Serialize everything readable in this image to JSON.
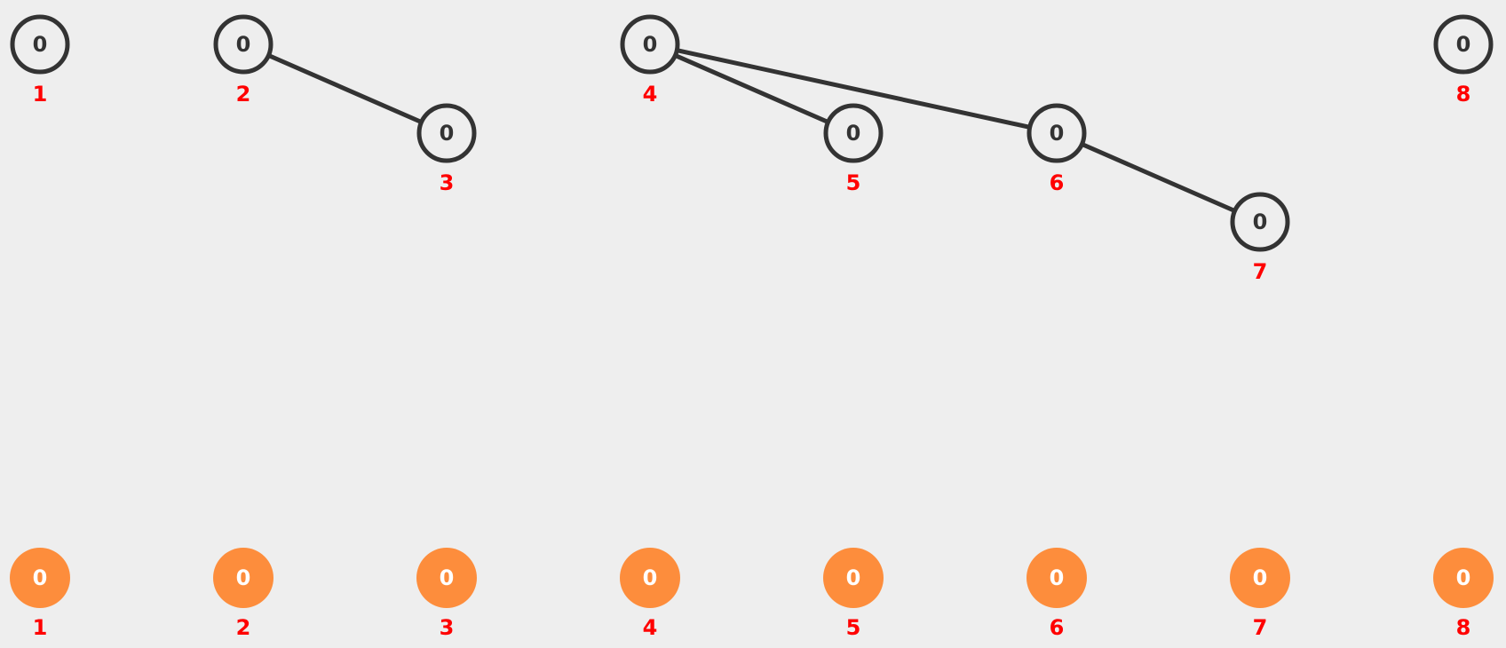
{
  "colors": {
    "background": "#eeeeee",
    "outline_node": "#333333",
    "filled_node": "#fd8d3c",
    "index_label": "#ff0000",
    "edge": "#333333"
  },
  "tree": {
    "nodes": [
      {
        "index": "1",
        "value": "0",
        "depth": 0
      },
      {
        "index": "2",
        "value": "0",
        "depth": 0
      },
      {
        "index": "3",
        "value": "0",
        "depth": 1
      },
      {
        "index": "4",
        "value": "0",
        "depth": 0
      },
      {
        "index": "5",
        "value": "0",
        "depth": 1
      },
      {
        "index": "6",
        "value": "0",
        "depth": 1
      },
      {
        "index": "7",
        "value": "0",
        "depth": 2
      },
      {
        "index": "8",
        "value": "0",
        "depth": 0
      }
    ],
    "edges": [
      {
        "from": "2",
        "to": "3"
      },
      {
        "from": "4",
        "to": "5"
      },
      {
        "from": "4",
        "to": "6"
      },
      {
        "from": "6",
        "to": "7"
      }
    ]
  },
  "array": {
    "items": [
      {
        "index": "1",
        "value": "0"
      },
      {
        "index": "2",
        "value": "0"
      },
      {
        "index": "3",
        "value": "0"
      },
      {
        "index": "4",
        "value": "0"
      },
      {
        "index": "5",
        "value": "0"
      },
      {
        "index": "6",
        "value": "0"
      },
      {
        "index": "7",
        "value": "0"
      },
      {
        "index": "8",
        "value": "0"
      }
    ]
  }
}
